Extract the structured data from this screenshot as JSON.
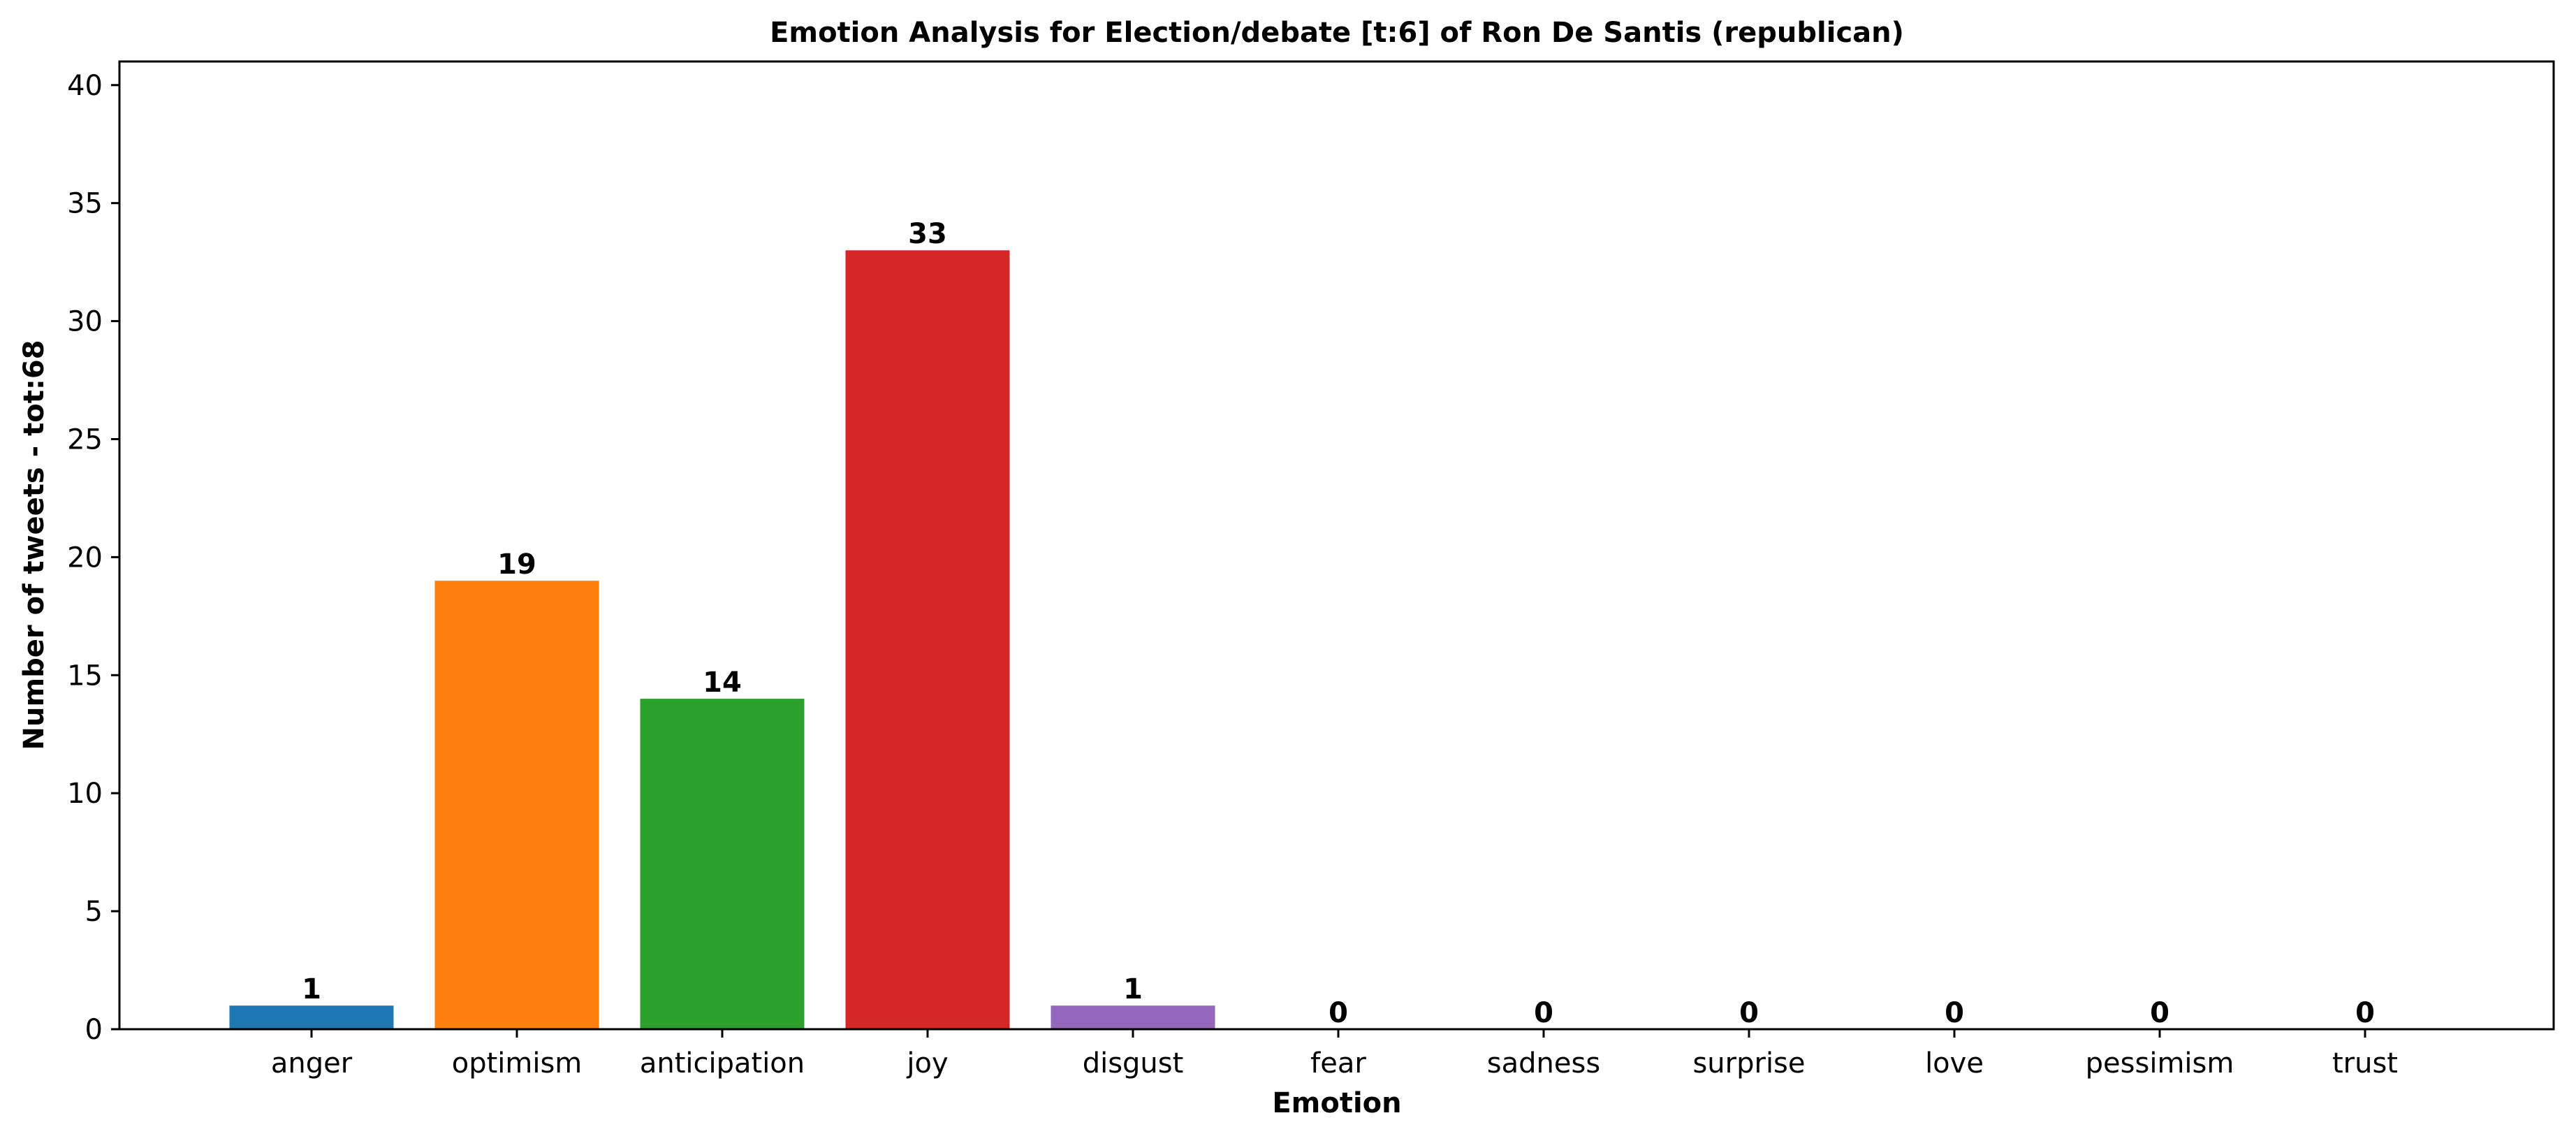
{
  "chart_data": {
    "type": "bar",
    "title": "Emotion Analysis for Election/debate [t:6] of Ron De Santis (republican)",
    "xlabel": "Emotion",
    "ylabel": "Number of tweets - tot:68",
    "categories": [
      "anger",
      "optimism",
      "anticipation",
      "joy",
      "disgust",
      "fear",
      "sadness",
      "surprise",
      "love",
      "pessimism",
      "trust"
    ],
    "values": [
      1,
      19,
      14,
      33,
      1,
      0,
      0,
      0,
      0,
      0,
      0
    ],
    "bar_labels": [
      "1",
      "19",
      "14",
      "33",
      "1",
      "0",
      "0",
      "0",
      "0",
      "0",
      "0"
    ],
    "colors": [
      "#1f77b4",
      "#ff7f0e",
      "#2ca02c",
      "#d62728",
      "#9467bd",
      "#8c564b",
      "#e377c2",
      "#7f7f7f",
      "#bcbd22",
      "#17becf",
      "#1f77b4"
    ],
    "ylim": [
      0,
      41
    ],
    "yticks": [
      0,
      5,
      10,
      15,
      20,
      25,
      30,
      35,
      40
    ],
    "grid": false,
    "legend": "none"
  }
}
